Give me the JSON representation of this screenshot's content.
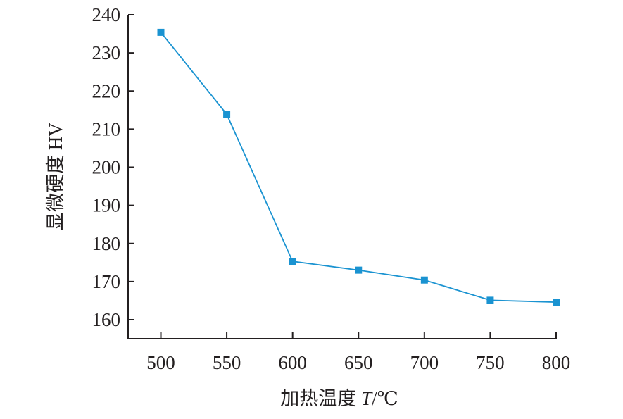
{
  "chart_data": {
    "type": "line",
    "title": "",
    "xlabel": {
      "prefix": "加热温度 ",
      "symbol": "T",
      "unit": "/℃"
    },
    "ylabel": "显微硬度 HV",
    "x": [
      500,
      550,
      600,
      650,
      700,
      750,
      800
    ],
    "series": [
      {
        "values": [
          235.4,
          213.9,
          175.3,
          173.0,
          170.4,
          165.1,
          164.6
        ],
        "color": "#1a93d1",
        "marker": "square"
      }
    ],
    "xticks": [
      "500",
      "550",
      "600",
      "650",
      "700",
      "750",
      "800"
    ],
    "yticks": [
      "160",
      "170",
      "180",
      "190",
      "200",
      "210",
      "220",
      "230",
      "240"
    ],
    "ylim": [
      155,
      240
    ],
    "xlim": [
      475,
      800
    ],
    "grid": false,
    "legend": "none"
  }
}
